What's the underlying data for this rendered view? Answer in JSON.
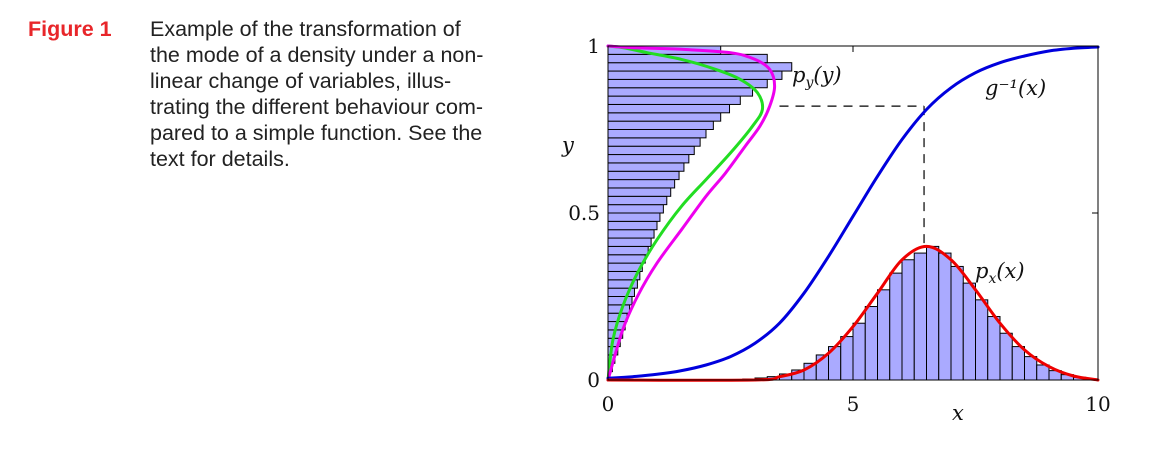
{
  "caption": {
    "label": "Figure 1",
    "lines": [
      "Example of the transformation of",
      "the mode of a density under a non-",
      "linear change of variables, illus-",
      "trating the different behaviour com-",
      "pared to a simple function. See the",
      "text for details."
    ]
  },
  "chart_data": {
    "type": "line",
    "xlabel": "x",
    "ylabel": "y",
    "xlim": [
      0,
      10
    ],
    "ylim": [
      0,
      1
    ],
    "x_ticks": [
      "0",
      "5",
      "10"
    ],
    "y_ticks": [
      "0",
      "0.5",
      "1"
    ],
    "annotations": {
      "g_inv": "g⁻¹(x)",
      "py": "p",
      "py_sub": "y",
      "py_arg": "(y)",
      "px": "p",
      "px_sub": "x",
      "px_arg": "(x)"
    },
    "colors": {
      "g_inverse": "#0000dd",
      "p_x": "#ee0000",
      "p_y": "#ee00ee",
      "p_y_naive": "#22dd22",
      "histogram_fill": "#aaaaff",
      "histogram_edge": "#000000"
    },
    "series": [
      {
        "key": "g_inverse",
        "x": [
          0,
          0.5,
          1,
          1.5,
          2,
          2.5,
          3,
          3.5,
          4,
          4.5,
          5,
          5.5,
          6,
          6.5,
          7,
          7.5,
          8,
          8.5,
          9,
          9.5,
          10
        ],
        "y": [
          0.005,
          0.01,
          0.017,
          0.028,
          0.045,
          0.07,
          0.11,
          0.17,
          0.26,
          0.37,
          0.49,
          0.61,
          0.72,
          0.81,
          0.875,
          0.92,
          0.95,
          0.97,
          0.985,
          0.993,
          0.997
        ]
      },
      {
        "key": "p_x",
        "x": [
          0,
          3,
          3.5,
          4,
          4.5,
          5,
          5.5,
          6,
          6.5,
          7,
          7.5,
          8,
          8.5,
          9,
          9.5,
          10
        ],
        "y": [
          0,
          0.0,
          0.01,
          0.03,
          0.08,
          0.16,
          0.26,
          0.36,
          0.4,
          0.36,
          0.27,
          0.17,
          0.09,
          0.04,
          0.012,
          0.0
        ]
      },
      {
        "key": "p_y",
        "x": [
          0,
          0.3,
          0.6,
          1.0,
          1.5,
          2.0,
          2.4,
          2.8,
          3.1,
          3.3,
          3.4,
          3.3,
          3.0,
          2.5,
          1.5,
          0.5,
          0
        ],
        "y": [
          0,
          0.15,
          0.25,
          0.35,
          0.45,
          0.55,
          0.62,
          0.7,
          0.76,
          0.82,
          0.88,
          0.93,
          0.96,
          0.98,
          0.99,
          0.995,
          1.0
        ]
      },
      {
        "key": "p_y_naive",
        "x": [
          0,
          0.1,
          0.3,
          0.6,
          1.0,
          1.5,
          2.0,
          2.5,
          2.95,
          3.15,
          3.05,
          2.7,
          2.2,
          1.5,
          0.8,
          0.3,
          0
        ],
        "y": [
          0,
          0.12,
          0.22,
          0.32,
          0.42,
          0.52,
          0.6,
          0.68,
          0.76,
          0.81,
          0.86,
          0.9,
          0.93,
          0.96,
          0.98,
          0.995,
          1.0
        ]
      }
    ],
    "histogram_x": {
      "bins": 40,
      "range": [
        0,
        10
      ],
      "values": [
        0,
        0,
        0,
        0,
        0,
        0,
        0,
        0,
        0,
        0,
        0,
        0.003,
        0.006,
        0.01,
        0.018,
        0.03,
        0.05,
        0.075,
        0.1,
        0.13,
        0.17,
        0.22,
        0.27,
        0.32,
        0.36,
        0.38,
        0.4,
        0.38,
        0.34,
        0.29,
        0.24,
        0.19,
        0.14,
        0.1,
        0.07,
        0.045,
        0.028,
        0.016,
        0.008,
        0.003
      ]
    },
    "histogram_y": {
      "bins": 40,
      "range": [
        0,
        1
      ],
      "values": [
        0.04,
        0.09,
        0.14,
        0.2,
        0.25,
        0.3,
        0.35,
        0.39,
        0.44,
        0.49,
        0.54,
        0.6,
        0.65,
        0.7,
        0.76,
        0.82,
        0.88,
        0.94,
        1.0,
        1.06,
        1.13,
        1.2,
        1.28,
        1.36,
        1.45,
        1.55,
        1.65,
        1.76,
        1.88,
        2.0,
        2.15,
        2.3,
        2.48,
        2.7,
        2.95,
        3.25,
        3.55,
        3.75,
        3.25,
        2.3
      ]
    },
    "mode_guides": {
      "x": 6.45,
      "y": 0.82
    }
  }
}
